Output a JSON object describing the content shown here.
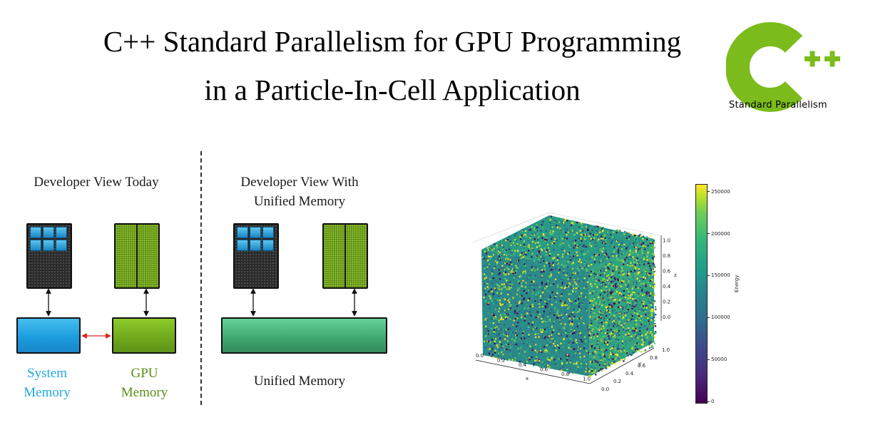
{
  "title": {
    "line1": "C++ Standard Parallelism for GPU Programming",
    "line2": "in a Particle-In-Cell Application"
  },
  "logo": {
    "mark": "C",
    "plus": "++",
    "caption": "Standard Parallelism",
    "color": "#7bbc1c"
  },
  "diagram": {
    "left_panel_label_1": "Developer View Today",
    "right_panel_label_1": "Developer View With",
    "right_panel_label_2": "Unified Memory",
    "system_memory_1": "System",
    "system_memory_2": "Memory",
    "gpu_memory_1": "GPU",
    "gpu_memory_2": "Memory",
    "unified_memory": "Unified Memory",
    "colors": {
      "cpu_core": "#1c86c6",
      "gpu": "#6fa71c",
      "system_memory": "#1a9bdd",
      "unified_memory": "#3fa56e",
      "copy_arrow": "#e02020"
    }
  },
  "scatter3d": {
    "x_label": "x",
    "y_label": "y",
    "z_label": "z",
    "x_ticks": [
      "0.0",
      "0.2",
      "0.4",
      "0.6",
      "0.8",
      "1.0"
    ],
    "y_ticks": [
      "0.0",
      "0.2",
      "0.4",
      "0.6",
      "0.8",
      "1.0"
    ],
    "z_ticks": [
      "0.0",
      "0.2",
      "0.4",
      "0.6",
      "0.8",
      "1.0"
    ],
    "colorbar_label": "Energy",
    "colorbar_ticks": [
      "250000",
      "200000",
      "150000",
      "100000",
      "50000",
      "0"
    ],
    "colormap": "viridis"
  },
  "chart_data": {
    "type": "scatter",
    "dimensions": 3,
    "x_range": [
      0,
      1
    ],
    "y_range": [
      0,
      1
    ],
    "z_range": [
      0,
      1
    ],
    "color_variable": "Energy",
    "color_range": [
      0,
      260000
    ],
    "xlabel": "x",
    "ylabel": "y",
    "zlabel": "z",
    "grid": true
  }
}
